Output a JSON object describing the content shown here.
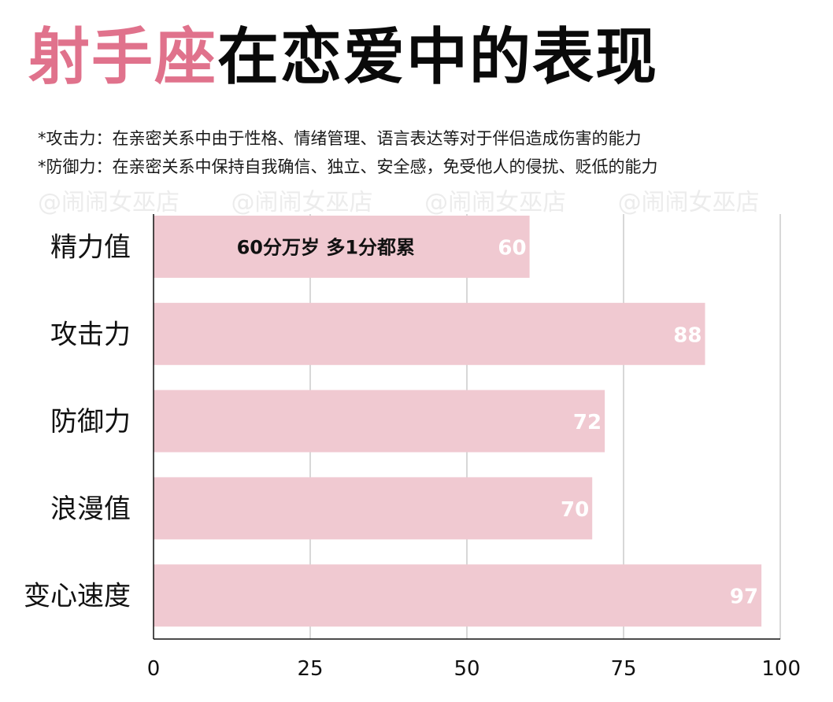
{
  "header": {
    "title_highlight": "射手座",
    "title_rest": "在恋爱中的表现",
    "note_1": "*攻击力：在亲密关系中由于性格、情绪管理、语言表达等对于伴侣造成伤害的能力",
    "note_2": "*防御力：在亲密关系中保持自我确信、独立、安全感，免受他人的侵扰、贬低的能力",
    "watermark": "@闹闹女巫店"
  },
  "colors": {
    "title_highlight": "#e0728c",
    "bar": "#f0c9d1",
    "grid": "#cccccc",
    "axis": "#111111"
  },
  "chart_data": {
    "type": "bar",
    "orientation": "horizontal",
    "categories": [
      "精力值",
      "攻击力",
      "防御力",
      "浪漫值",
      "变心速度"
    ],
    "values": [
      60,
      88,
      72,
      70,
      97
    ],
    "xlim": [
      0,
      100
    ],
    "xticks": [
      0,
      25,
      50,
      75,
      100
    ],
    "grid": true,
    "data_labels": true,
    "annotations": [
      {
        "category": "精力值",
        "text": "60分万岁 多1分都累"
      }
    ]
  }
}
